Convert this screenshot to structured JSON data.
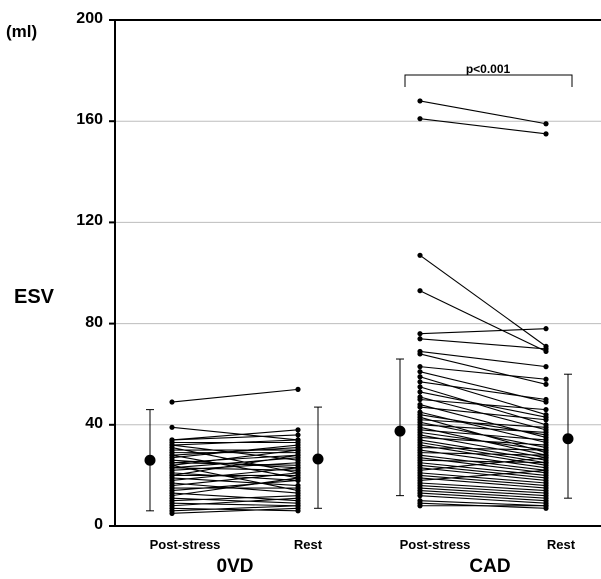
{
  "chart_data": {
    "type": "line",
    "ylabel": "ESV",
    "unit": "(ml)",
    "ylim": [
      0,
      200
    ],
    "yticks": [
      "0",
      "40",
      "80",
      "120",
      "160",
      "200"
    ],
    "ytick_values": [
      0,
      40,
      80,
      120,
      160,
      200
    ],
    "grid": true,
    "groups": [
      {
        "name": "0VD",
        "categories": [
          "Post-stress",
          "Rest"
        ],
        "mean": [
          26,
          26.5
        ],
        "sd_range": [
          [
            6,
            46
          ],
          [
            7,
            47
          ]
        ],
        "pairs": [
          [
            49,
            54
          ],
          [
            39,
            34
          ],
          [
            34,
            38
          ],
          [
            34,
            36
          ],
          [
            33,
            33
          ],
          [
            32,
            26
          ],
          [
            32,
            34
          ],
          [
            31,
            21
          ],
          [
            30,
            30
          ],
          [
            29,
            29
          ],
          [
            28,
            31
          ],
          [
            28,
            19
          ],
          [
            27,
            32
          ],
          [
            26,
            23
          ],
          [
            25,
            24
          ],
          [
            25,
            28
          ],
          [
            24,
            30
          ],
          [
            24,
            14
          ],
          [
            23,
            22
          ],
          [
            23,
            27
          ],
          [
            22,
            25
          ],
          [
            21,
            18
          ],
          [
            20,
            20
          ],
          [
            20,
            28
          ],
          [
            19,
            16
          ],
          [
            18,
            23
          ],
          [
            17,
            13
          ],
          [
            16,
            21
          ],
          [
            15,
            15
          ],
          [
            14,
            18
          ],
          [
            13,
            10
          ],
          [
            12,
            19
          ],
          [
            11,
            9
          ],
          [
            10,
            12
          ],
          [
            9,
            8
          ],
          [
            8,
            11
          ],
          [
            7,
            6
          ],
          [
            6,
            8
          ],
          [
            5,
            7
          ]
        ]
      },
      {
        "name": "CAD",
        "categories": [
          "Post-stress",
          "Rest"
        ],
        "mean": [
          37.5,
          34.5
        ],
        "sd_range": [
          [
            12,
            66
          ],
          [
            11,
            60
          ]
        ],
        "annotation": "p<0.001",
        "pairs": [
          [
            168,
            159
          ],
          [
            161,
            155
          ],
          [
            107,
            71
          ],
          [
            93,
            69
          ],
          [
            76,
            78
          ],
          [
            74,
            70
          ],
          [
            69,
            63
          ],
          [
            68,
            56
          ],
          [
            63,
            58
          ],
          [
            61,
            49
          ],
          [
            59,
            44
          ],
          [
            57,
            50
          ],
          [
            55,
            40
          ],
          [
            53,
            43
          ],
          [
            51,
            38
          ],
          [
            50,
            46
          ],
          [
            48,
            35
          ],
          [
            47,
            42
          ],
          [
            45,
            33
          ],
          [
            44,
            36
          ],
          [
            43,
            29
          ],
          [
            42,
            39
          ],
          [
            41,
            31
          ],
          [
            40,
            37
          ],
          [
            39,
            28
          ],
          [
            38,
            34
          ],
          [
            37,
            30
          ],
          [
            36,
            27
          ],
          [
            35,
            32
          ],
          [
            34,
            26
          ],
          [
            33,
            25
          ],
          [
            32,
            24
          ],
          [
            31,
            30
          ],
          [
            30,
            23
          ],
          [
            29,
            28
          ],
          [
            28,
            22
          ],
          [
            27,
            21
          ],
          [
            26,
            25
          ],
          [
            25,
            20
          ],
          [
            24,
            19
          ],
          [
            23,
            18
          ],
          [
            22,
            27
          ],
          [
            21,
            17
          ],
          [
            20,
            16
          ],
          [
            19,
            15
          ],
          [
            18,
            22
          ],
          [
            17,
            14
          ],
          [
            16,
            13
          ],
          [
            15,
            12
          ],
          [
            14,
            11
          ],
          [
            13,
            10
          ],
          [
            12,
            9
          ],
          [
            10,
            8
          ],
          [
            9,
            7
          ],
          [
            8,
            8
          ]
        ]
      }
    ]
  }
}
